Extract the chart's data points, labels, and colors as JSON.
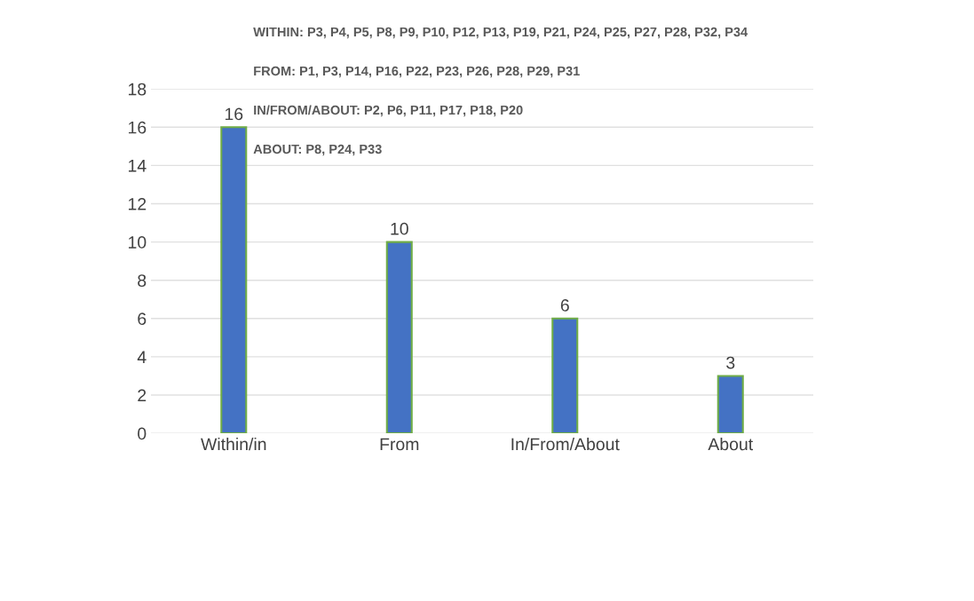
{
  "chart_data": {
    "type": "bar",
    "categories": [
      "Within/in",
      "From",
      "In/From/About",
      "About"
    ],
    "values": [
      16,
      10,
      6,
      3
    ],
    "color": "#4472c4",
    "ylim": [
      0,
      18
    ],
    "yticks": [
      0,
      2,
      4,
      6,
      8,
      10,
      12,
      14,
      16,
      18
    ],
    "grid": "y",
    "data_labels": true,
    "annotations": [
      "WITHIN: P3, P4, P5, P8, P9, P10, P12, P13, P19, P21, P24, P25, P27, P28, P32, P34",
      "FROM: P1, P3, P14, P16, P22, P23, P26, P28, P29, P31",
      "IN/FROM/ABOUT: P2, P6, P11, P17, P18, P20",
      "ABOUT: P8, P24, P33"
    ]
  }
}
